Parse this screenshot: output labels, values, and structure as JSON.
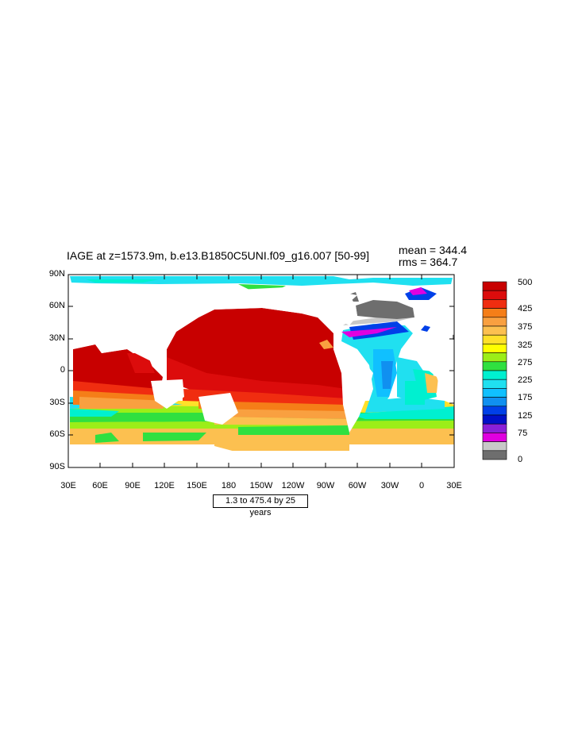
{
  "plot": {
    "title": "IAGE at z=1573.9m, b.e13.B1850C5UNI.f09_g16.007 [50-99]",
    "mean_text": "mean = 344.4",
    "rms_text": "rms = 364.7",
    "info_box": "1.3 to 475.4 by 25 years"
  },
  "axes": {
    "lat_labels": [
      "90N",
      "60N",
      "30N",
      "0",
      "30S",
      "60S",
      "90S"
    ],
    "lon_labels": [
      "30E",
      "60E",
      "90E",
      "120E",
      "150E",
      "180",
      "150W",
      "120W",
      "90W",
      "60W",
      "30W",
      "0",
      "30E"
    ]
  },
  "colorbar": {
    "labels": [
      "500",
      "425",
      "375",
      "325",
      "275",
      "225",
      "175",
      "125",
      "75",
      "0"
    ],
    "colors": [
      "#c80000",
      "#dc0c0c",
      "#f02d10",
      "#f57e18",
      "#f9a040",
      "#fcc050",
      "#ffe02a",
      "#ffff00",
      "#9cee18",
      "#30e040",
      "#00f0d0",
      "#20e0f0",
      "#10c0ff",
      "#1090f0",
      "#0040e8",
      "#0010c8",
      "#8a20d8",
      "#e000e0",
      "#c8c8c8",
      "#6e6e6e"
    ]
  },
  "map": {
    "projection": "cylindrical-equidistant",
    "lon_range": [
      30,
      390
    ],
    "lat_range": [
      -90,
      90
    ],
    "land_color": "#ffffff",
    "regions": [
      {
        "name": "arctic-ocean",
        "color": "#20e0f0"
      },
      {
        "name": "north-atlantic-young-water",
        "color": "#0040e8"
      },
      {
        "name": "labrador-sea",
        "color": "#e000e0"
      },
      {
        "name": "greenland",
        "color": "#6e6e6e"
      },
      {
        "name": "north-pacific-old-water",
        "color": "#c80000"
      },
      {
        "name": "southern-ocean",
        "color": "#30e040"
      }
    ]
  }
}
